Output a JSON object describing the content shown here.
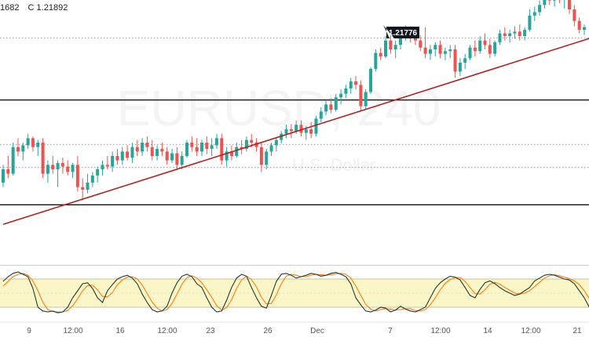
{
  "header": {
    "ohlc_low": "1682",
    "ohlc_close": "C 1.21892"
  },
  "watermark": {
    "symbol": "EURUSD, 240",
    "subtitle": "U.S. Dollar"
  },
  "colors": {
    "up": "#26a69a",
    "down": "#ef5350",
    "trendline": "#b22222",
    "stoch_k": "#1f3b2e",
    "stoch_d": "#ff7f0e",
    "stoch_band": "#fbf6c8"
  },
  "icons": {
    "price_marker": "callout-label"
  },
  "chart_data": [
    {
      "type": "candlestick",
      "title": "",
      "xlabel": "",
      "ylabel": "",
      "ylim": [
        1.1925,
        1.2195
      ],
      "grid": false,
      "x_ticks": [
        "9",
        "12:00",
        "16",
        "12:00",
        "23",
        "26",
        "Dec",
        "7",
        "12:00",
        "14",
        "12:00",
        "21"
      ],
      "annotation": {
        "label": "1.21776",
        "value": 1.21776
      },
      "horizontal_lines": {
        "solid": [
          1.2093,
          1.1975
        ],
        "dotted": [
          1.2163,
          1.2043,
          1.2017
        ]
      },
      "trendline": {
        "from": [
          0,
          1.1953
        ],
        "to": [
          119,
          1.2165
        ]
      },
      "candles": [
        [
          1.2,
          1.202,
          1.1995,
          1.2015
        ],
        [
          1.2015,
          1.203,
          1.2005,
          1.201
        ],
        [
          1.201,
          1.2045,
          1.2008,
          1.204
        ],
        [
          1.204,
          1.205,
          1.203,
          1.2035
        ],
        [
          1.2035,
          1.2045,
          1.2025,
          1.2042
        ],
        [
          1.2042,
          1.2055,
          1.2038,
          1.205
        ],
        [
          1.205,
          1.2052,
          1.2035,
          1.204
        ],
        [
          1.204,
          1.2048,
          1.203,
          1.2045
        ],
        [
          1.2045,
          1.205,
          1.2005,
          1.201
        ],
        [
          1.201,
          1.2025,
          1.2,
          1.202
        ],
        [
          1.202,
          1.203,
          1.201,
          1.2015
        ],
        [
          1.2015,
          1.2025,
          1.1995,
          1.2022
        ],
        [
          1.2022,
          1.2028,
          1.201,
          1.2018
        ],
        [
          1.2018,
          1.2025,
          1.2008,
          1.2012
        ],
        [
          1.2012,
          1.2022,
          1.2005,
          1.202
        ],
        [
          1.202,
          1.203,
          1.199,
          1.1995
        ],
        [
          1.1995,
          1.2005,
          1.198,
          1.1992
        ],
        [
          1.1992,
          1.201,
          1.1988,
          1.2
        ],
        [
          1.2,
          1.2012,
          1.1995,
          1.2008
        ],
        [
          1.2008,
          1.2018,
          1.2,
          1.2015
        ],
        [
          1.2015,
          1.2025,
          1.2008,
          1.202
        ],
        [
          1.202,
          1.203,
          1.2015,
          1.2018
        ],
        [
          1.2018,
          1.2035,
          1.2012,
          1.203
        ],
        [
          1.203,
          1.2038,
          1.202,
          1.2025
        ],
        [
          1.2025,
          1.204,
          1.202,
          1.2035
        ],
        [
          1.2035,
          1.2042,
          1.2025,
          1.2028
        ],
        [
          1.2028,
          1.2045,
          1.2022,
          1.204
        ],
        [
          1.204,
          1.2048,
          1.203,
          1.2035
        ],
        [
          1.2035,
          1.205,
          1.203,
          1.2045
        ],
        [
          1.2045,
          1.2052,
          1.2035,
          1.204
        ],
        [
          1.204,
          1.2048,
          1.2025,
          1.203
        ],
        [
          1.203,
          1.2042,
          1.2025,
          1.2038
        ],
        [
          1.2038,
          1.2045,
          1.203,
          1.2035
        ],
        [
          1.2035,
          1.204,
          1.202,
          1.2025
        ],
        [
          1.2025,
          1.2038,
          1.2022,
          1.2033
        ],
        [
          1.2033,
          1.204,
          1.2015,
          1.202
        ],
        [
          1.202,
          1.2035,
          1.2015,
          1.203
        ],
        [
          1.203,
          1.2048,
          1.2028,
          1.2045
        ],
        [
          1.2045,
          1.2052,
          1.2035,
          1.204
        ],
        [
          1.204,
          1.205,
          1.203,
          1.2035
        ],
        [
          1.2035,
          1.2048,
          1.203,
          1.2045
        ],
        [
          1.2045,
          1.2052,
          1.2032,
          1.2038
        ],
        [
          1.2038,
          1.205,
          1.203,
          1.2042
        ],
        [
          1.2042,
          1.2055,
          1.2038,
          1.205
        ],
        [
          1.205,
          1.2055,
          1.202,
          1.2025
        ],
        [
          1.2025,
          1.204,
          1.2018,
          1.2035
        ],
        [
          1.2035,
          1.2042,
          1.2025,
          1.203
        ],
        [
          1.203,
          1.2045,
          1.2028,
          1.204
        ],
        [
          1.204,
          1.2048,
          1.2032,
          1.2038
        ],
        [
          1.2038,
          1.2052,
          1.2035,
          1.2048
        ],
        [
          1.2048,
          1.2055,
          1.204,
          1.2045
        ],
        [
          1.2045,
          1.205,
          1.2035,
          1.204
        ],
        [
          1.204,
          1.2045,
          1.2012,
          1.202
        ],
        [
          1.202,
          1.2038,
          1.2015,
          1.2035
        ],
        [
          1.2035,
          1.2045,
          1.203,
          1.2042
        ],
        [
          1.2042,
          1.205,
          1.2035,
          1.2048
        ],
        [
          1.2048,
          1.2058,
          1.2044,
          1.2055
        ],
        [
          1.2055,
          1.2065,
          1.205,
          1.206
        ],
        [
          1.206,
          1.2066,
          1.205,
          1.2058
        ],
        [
          1.2058,
          1.207,
          1.2055,
          1.2065
        ],
        [
          1.2065,
          1.207,
          1.2052,
          1.2056
        ],
        [
          1.2056,
          1.2064,
          1.2048,
          1.206
        ],
        [
          1.206,
          1.2068,
          1.205,
          1.2055
        ],
        [
          1.2055,
          1.2075,
          1.2052,
          1.2072
        ],
        [
          1.2072,
          1.2085,
          1.2068,
          1.208
        ],
        [
          1.208,
          1.2092,
          1.2076,
          1.2088
        ],
        [
          1.2088,
          1.2095,
          1.2078,
          1.2082
        ],
        [
          1.2082,
          1.21,
          1.208,
          1.2096
        ],
        [
          1.2096,
          1.2105,
          1.2088,
          1.21
        ],
        [
          1.21,
          1.211,
          1.2095,
          1.2106
        ],
        [
          1.2106,
          1.2118,
          1.21,
          1.2114
        ],
        [
          1.2114,
          1.212,
          1.2105,
          1.211
        ],
        [
          1.211,
          1.2115,
          1.208,
          1.2086
        ],
        [
          1.2086,
          1.2105,
          1.2082,
          1.2102
        ],
        [
          1.2102,
          1.213,
          1.21,
          1.2128
        ],
        [
          1.2128,
          1.215,
          1.2125,
          1.2146
        ],
        [
          1.2146,
          1.2152,
          1.2138,
          1.2142
        ],
        [
          1.2142,
          1.2165,
          1.214,
          1.216
        ],
        [
          1.216,
          1.2168,
          1.2145,
          1.215
        ],
        [
          1.215,
          1.216,
          1.214,
          1.2155
        ],
        [
          1.2155,
          1.2172,
          1.215,
          1.2168
        ],
        [
          1.2168,
          1.2177,
          1.216,
          1.2172
        ],
        [
          1.2172,
          1.2176,
          1.2158,
          1.2164
        ],
        [
          1.2164,
          1.217,
          1.2155,
          1.216
        ],
        [
          1.216,
          1.2166,
          1.2148,
          1.2152
        ],
        [
          1.2152,
          1.2175,
          1.214,
          1.2145
        ],
        [
          1.2145,
          1.2155,
          1.2138,
          1.215
        ],
        [
          1.215,
          1.2158,
          1.2142,
          1.2155
        ],
        [
          1.2155,
          1.216,
          1.214,
          1.2145
        ],
        [
          1.2145,
          1.2152,
          1.2138,
          1.2148
        ],
        [
          1.2148,
          1.2155,
          1.214,
          1.215
        ],
        [
          1.215,
          1.2155,
          1.2118,
          1.2125
        ],
        [
          1.2125,
          1.214,
          1.212,
          1.2135
        ],
        [
          1.2135,
          1.2145,
          1.2128,
          1.214
        ],
        [
          1.214,
          1.2155,
          1.2138,
          1.2152
        ],
        [
          1.2152,
          1.216,
          1.2142,
          1.2148
        ],
        [
          1.2148,
          1.2165,
          1.2145,
          1.216
        ],
        [
          1.216,
          1.2168,
          1.215,
          1.2155
        ],
        [
          1.2155,
          1.2162,
          1.214,
          1.2145
        ],
        [
          1.2145,
          1.216,
          1.2142,
          1.2158
        ],
        [
          1.2158,
          1.2172,
          1.2155,
          1.2168
        ],
        [
          1.2168,
          1.2175,
          1.216,
          1.2165
        ],
        [
          1.2165,
          1.2172,
          1.2158,
          1.2168
        ],
        [
          1.2168,
          1.2176,
          1.2162,
          1.217
        ],
        [
          1.217,
          1.2178,
          1.216,
          1.2165
        ],
        [
          1.2165,
          1.2175,
          1.216,
          1.2172
        ],
        [
          1.2172,
          1.2195,
          1.217,
          1.2188
        ],
        [
          1.2188,
          1.2198,
          1.2182,
          1.2192
        ],
        [
          1.2192,
          1.2205,
          1.2188,
          1.22
        ],
        [
          1.22,
          1.2215,
          1.2196,
          1.221
        ],
        [
          1.221,
          1.2218,
          1.22,
          1.2205
        ],
        [
          1.2205,
          1.2216,
          1.2198,
          1.2212
        ],
        [
          1.2212,
          1.2217,
          1.2202,
          1.2206
        ],
        [
          1.2206,
          1.2214,
          1.2196,
          1.2208
        ],
        [
          1.2208,
          1.2212,
          1.219,
          1.2195
        ],
        [
          1.2195,
          1.22,
          1.2176,
          1.2182
        ],
        [
          1.2182,
          1.2186,
          1.2168,
          1.2172
        ],
        [
          1.2172,
          1.2178,
          1.2166,
          1.2175
        ]
      ],
      "indicator": {
        "name": "stochastic",
        "ylim": [
          0,
          100
        ],
        "band": [
          20,
          80
        ],
        "k": [
          75,
          85,
          92,
          95,
          90,
          85,
          60,
          20,
          12,
          10,
          12,
          8,
          10,
          20,
          40,
          55,
          70,
          72,
          60,
          40,
          30,
          55,
          68,
          80,
          85,
          88,
          82,
          70,
          48,
          30,
          15,
          10,
          12,
          22,
          50,
          72,
          86,
          90,
          85,
          70,
          62,
          40,
          20,
          10,
          12,
          35,
          62,
          82,
          90,
          86,
          62,
          40,
          22,
          18,
          45,
          75,
          90,
          92,
          88,
          82,
          85,
          88,
          92,
          90,
          86,
          88,
          92,
          94,
          90,
          85,
          70,
          40,
          25,
          12,
          10,
          14,
          20,
          18,
          10,
          14,
          22,
          16,
          12,
          10,
          15,
          20,
          40,
          60,
          72,
          80,
          86,
          84,
          78,
          62,
          45,
          40,
          58,
          72,
          76,
          70,
          62,
          55,
          50,
          45,
          48,
          55,
          62,
          76,
          82,
          88,
          90,
          88,
          84,
          80,
          78,
          70,
          55,
          40,
          20,
          8
        ],
        "d": [
          65,
          75,
          85,
          90,
          92,
          88,
          76,
          55,
          30,
          15,
          11,
          10,
          10,
          13,
          23,
          38,
          55,
          66,
          67,
          57,
          43,
          42,
          51,
          68,
          78,
          84,
          85,
          80,
          67,
          49,
          31,
          18,
          12,
          15,
          28,
          48,
          69,
          83,
          87,
          82,
          72,
          57,
          41,
          23,
          14,
          19,
          36,
          60,
          78,
          86,
          79,
          63,
          41,
          27,
          28,
          46,
          70,
          86,
          90,
          88,
          85,
          85,
          88,
          90,
          89,
          88,
          89,
          91,
          92,
          90,
          82,
          65,
          45,
          26,
          16,
          12,
          15,
          17,
          16,
          14,
          15,
          17,
          17,
          13,
          12,
          15,
          25,
          40,
          57,
          71,
          79,
          83,
          83,
          75,
          62,
          49,
          48,
          57,
          69,
          73,
          69,
          62,
          56,
          50,
          48,
          50,
          55,
          64,
          73,
          82,
          87,
          89,
          87,
          84,
          81,
          76,
          68,
          55,
          38,
          23
        ]
      }
    }
  ]
}
